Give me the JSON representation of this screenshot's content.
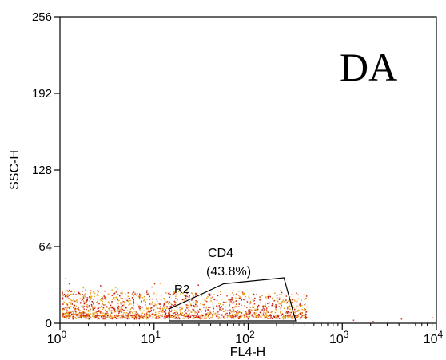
{
  "chart_data": {
    "type": "scatter",
    "panel_label": "DA",
    "xlabel": "FL4-H",
    "ylabel": "SSC-H",
    "x_scale": "log",
    "xlim": [
      1,
      10000
    ],
    "ylim": [
      0,
      256
    ],
    "x_ticks": [
      {
        "value": 1,
        "base": "10",
        "exp": "0"
      },
      {
        "value": 10,
        "base": "10",
        "exp": "1"
      },
      {
        "value": 100,
        "base": "10",
        "exp": "2"
      },
      {
        "value": 1000,
        "base": "10",
        "exp": "3"
      },
      {
        "value": 10000,
        "base": "10",
        "exp": "4"
      }
    ],
    "y_ticks": [
      "0",
      "64",
      "128",
      "192",
      "256"
    ],
    "grid": false,
    "gate": {
      "name": "R2",
      "label": "CD4",
      "percent": "(43.8%)",
      "polygon": [
        [
          14.5,
          2
        ],
        [
          14.5,
          12
        ],
        [
          55,
          33
        ],
        [
          240,
          38
        ],
        [
          320,
          2
        ]
      ]
    },
    "point_colors": [
      "#e8a020",
      "#d83a1a",
      "#c01818",
      "#f0b030"
    ]
  }
}
